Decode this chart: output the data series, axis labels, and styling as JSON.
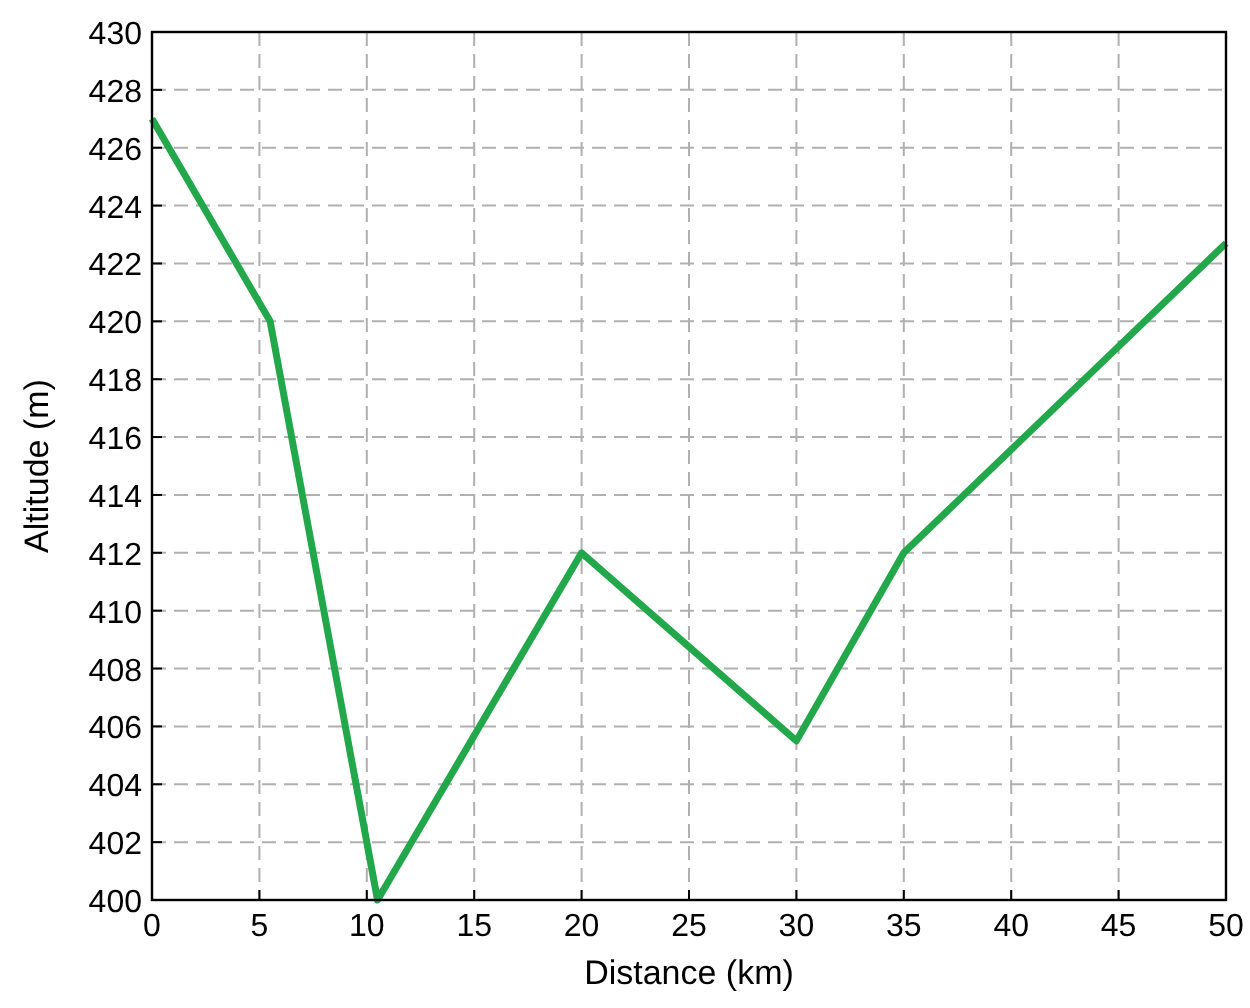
{
  "chart_data": {
    "type": "line",
    "xlabel": "Distance (km)",
    "ylabel": "Altitude (m)",
    "x": [
      0,
      5.5,
      10.5,
      20,
      30,
      35,
      50
    ],
    "series": [
      {
        "color": "#22a84a",
        "values": [
          427,
          420,
          400,
          412,
          405.5,
          412,
          422.7
        ]
      }
    ],
    "xlim": [
      0,
      50
    ],
    "xticks": [
      0,
      5,
      10,
      15,
      20,
      25,
      30,
      35,
      40,
      45,
      50
    ],
    "ylim": [
      400,
      430
    ],
    "yticks": [
      400,
      402,
      404,
      406,
      408,
      410,
      412,
      414,
      416,
      418,
      420,
      422,
      424,
      426,
      428,
      430
    ],
    "grid": true,
    "marker": "none",
    "line_style": "solid"
  }
}
